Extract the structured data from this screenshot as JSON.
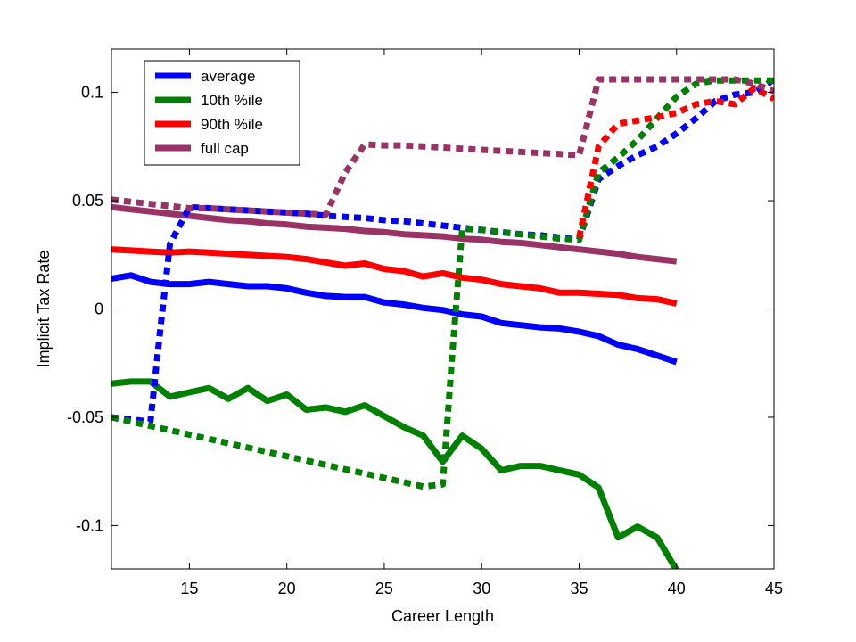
{
  "chart_data": {
    "type": "line",
    "title": "",
    "xlabel": "Career Length",
    "ylabel": "Implicit Tax Rate",
    "xlim": [
      11,
      45
    ],
    "ylim": [
      -0.12,
      0.12
    ],
    "xticks": [
      15,
      20,
      25,
      30,
      35,
      40,
      45
    ],
    "yticks": [
      -0.1,
      -0.05,
      0,
      0.05,
      0.1
    ],
    "ytick_labels": [
      "-0.1",
      "-0.05",
      "0",
      "0.05",
      "0.1"
    ],
    "grid": false,
    "legend_position": "top-left",
    "legend": [
      {
        "name": "average",
        "color": "#0000ff"
      },
      {
        "name": "10th %ile",
        "color": "#008000"
      },
      {
        "name": "90th %ile",
        "color": "#ff0000"
      },
      {
        "name": "full cap",
        "color": "#993366"
      }
    ],
    "series": [
      {
        "name": "average",
        "style": "solid",
        "color": "#0000ff",
        "x": [
          11,
          12,
          13,
          14,
          15,
          16,
          17,
          18,
          19,
          20,
          21,
          22,
          23,
          24,
          25,
          26,
          27,
          28,
          29,
          30,
          31,
          32,
          33,
          34,
          35,
          36,
          37,
          38,
          39,
          40
        ],
        "y": [
          0.014,
          0.0155,
          0.0125,
          0.0115,
          0.0115,
          0.0125,
          0.0115,
          0.0105,
          0.0105,
          0.0095,
          0.0075,
          0.006,
          0.0055,
          0.0055,
          0.003,
          0.002,
          0.0005,
          -0.0005,
          -0.0025,
          -0.0035,
          -0.0065,
          -0.0075,
          -0.0085,
          -0.009,
          -0.0105,
          -0.0125,
          -0.0165,
          -0.0185,
          -0.0215,
          -0.0245
        ]
      },
      {
        "name": "10th %ile",
        "style": "solid",
        "color": "#008000",
        "x": [
          11,
          12,
          13,
          14,
          15,
          16,
          17,
          18,
          19,
          20,
          21,
          22,
          23,
          24,
          25,
          26,
          27,
          28,
          29,
          30,
          31,
          32,
          33,
          34,
          35,
          36,
          37,
          38,
          39,
          40
        ],
        "y": [
          -0.0345,
          -0.0335,
          -0.0335,
          -0.0405,
          -0.0385,
          -0.0365,
          -0.0415,
          -0.0365,
          -0.0425,
          -0.0395,
          -0.0465,
          -0.0455,
          -0.0475,
          -0.0445,
          -0.0495,
          -0.0545,
          -0.0585,
          -0.0705,
          -0.0585,
          -0.0645,
          -0.0745,
          -0.0725,
          -0.0725,
          -0.0745,
          -0.0765,
          -0.0825,
          -0.1055,
          -0.1005,
          -0.1055,
          -0.1205
        ]
      },
      {
        "name": "90th %ile",
        "style": "solid",
        "color": "#ff0000",
        "x": [
          11,
          12,
          13,
          14,
          15,
          16,
          17,
          18,
          19,
          20,
          21,
          22,
          23,
          24,
          25,
          26,
          27,
          28,
          29,
          30,
          31,
          32,
          33,
          34,
          35,
          36,
          37,
          38,
          39,
          40
        ],
        "y": [
          0.0275,
          0.027,
          0.0265,
          0.026,
          0.0265,
          0.026,
          0.0255,
          0.025,
          0.0245,
          0.024,
          0.023,
          0.0215,
          0.02,
          0.021,
          0.0185,
          0.0175,
          0.015,
          0.0165,
          0.0145,
          0.0135,
          0.0115,
          0.0105,
          0.0095,
          0.0075,
          0.0075,
          0.007,
          0.0065,
          0.005,
          0.0045,
          0.0025
        ]
      },
      {
        "name": "full cap",
        "style": "solid",
        "color": "#993366",
        "x": [
          11,
          12,
          13,
          14,
          15,
          16,
          17,
          18,
          19,
          20,
          21,
          22,
          23,
          24,
          25,
          26,
          27,
          28,
          29,
          30,
          31,
          32,
          33,
          34,
          35,
          36,
          37,
          38,
          39,
          40
        ],
        "y": [
          0.047,
          0.046,
          0.045,
          0.044,
          0.043,
          0.042,
          0.041,
          0.0405,
          0.0395,
          0.039,
          0.038,
          0.0375,
          0.037,
          0.036,
          0.0355,
          0.0345,
          0.034,
          0.0335,
          0.0325,
          0.032,
          0.031,
          0.0305,
          0.0295,
          0.0285,
          0.0275,
          0.0265,
          0.0255,
          0.024,
          0.023,
          0.022
        ]
      },
      {
        "name": "average",
        "style": "dotted",
        "color": "#0000ff",
        "x": [
          11,
          12,
          13,
          13.5,
          14,
          15,
          16,
          17,
          18,
          19,
          20,
          21,
          22,
          23,
          24,
          25,
          26,
          27,
          28,
          29,
          30,
          31,
          32,
          33,
          34,
          35,
          36,
          37,
          38,
          39,
          40,
          41,
          42,
          43,
          44,
          45
        ],
        "y": [
          -0.05,
          -0.051,
          -0.052,
          -0.01,
          0.03,
          0.047,
          0.0465,
          0.046,
          0.0455,
          0.045,
          0.0445,
          0.044,
          0.043,
          0.0425,
          0.042,
          0.041,
          0.0405,
          0.0395,
          0.0385,
          0.0375,
          0.0365,
          0.0355,
          0.0345,
          0.034,
          0.033,
          0.032,
          0.06,
          0.066,
          0.071,
          0.075,
          0.081,
          0.088,
          0.096,
          0.099,
          0.1,
          0.106
        ]
      },
      {
        "name": "10th %ile",
        "style": "dotted",
        "color": "#008000",
        "x": [
          11,
          12,
          13,
          14,
          15,
          16,
          17,
          18,
          19,
          20,
          21,
          22,
          23,
          24,
          25,
          26,
          27,
          28,
          28.5,
          29,
          30,
          31,
          32,
          33,
          34,
          35,
          36,
          37,
          38,
          39,
          40,
          41,
          42,
          43,
          44,
          45
        ],
        "y": [
          -0.05,
          -0.052,
          -0.054,
          -0.056,
          -0.058,
          -0.06,
          -0.062,
          -0.064,
          -0.066,
          -0.068,
          -0.07,
          -0.072,
          -0.074,
          -0.076,
          -0.078,
          -0.08,
          -0.082,
          -0.081,
          -0.02,
          0.037,
          0.0365,
          0.0355,
          0.0345,
          0.0335,
          0.0325,
          0.032,
          0.063,
          0.07,
          0.078,
          0.088,
          0.098,
          0.104,
          0.1055,
          0.1055,
          0.1055,
          0.1055
        ]
      },
      {
        "name": "90th %ile",
        "style": "dotted",
        "color": "#ff0000",
        "x": [
          35,
          36,
          37,
          38,
          39,
          40,
          41,
          42,
          43,
          44,
          45
        ],
        "y": [
          0.033,
          0.075,
          0.0855,
          0.087,
          0.0885,
          0.0905,
          0.0945,
          0.096,
          0.0945,
          0.102,
          0.097
        ]
      },
      {
        "name": "full cap",
        "style": "dotted",
        "color": "#993366",
        "x": [
          11,
          12,
          13,
          14,
          15,
          16,
          17,
          18,
          19,
          20,
          21,
          22,
          23,
          24,
          25,
          26,
          27,
          28,
          29,
          30,
          31,
          32,
          33,
          34,
          35,
          36,
          37,
          38,
          39,
          40,
          41,
          42,
          43,
          44,
          45
        ],
        "y": [
          0.0505,
          0.0495,
          0.0485,
          0.0475,
          0.0465,
          0.0465,
          0.046,
          0.0455,
          0.045,
          0.0445,
          0.044,
          0.0435,
          0.063,
          0.076,
          0.0755,
          0.0755,
          0.075,
          0.0745,
          0.074,
          0.0735,
          0.073,
          0.0725,
          0.072,
          0.0715,
          0.071,
          0.106,
          0.106,
          0.106,
          0.106,
          0.106,
          0.106,
          0.106,
          0.106,
          0.104,
          0.1005
        ]
      }
    ]
  }
}
